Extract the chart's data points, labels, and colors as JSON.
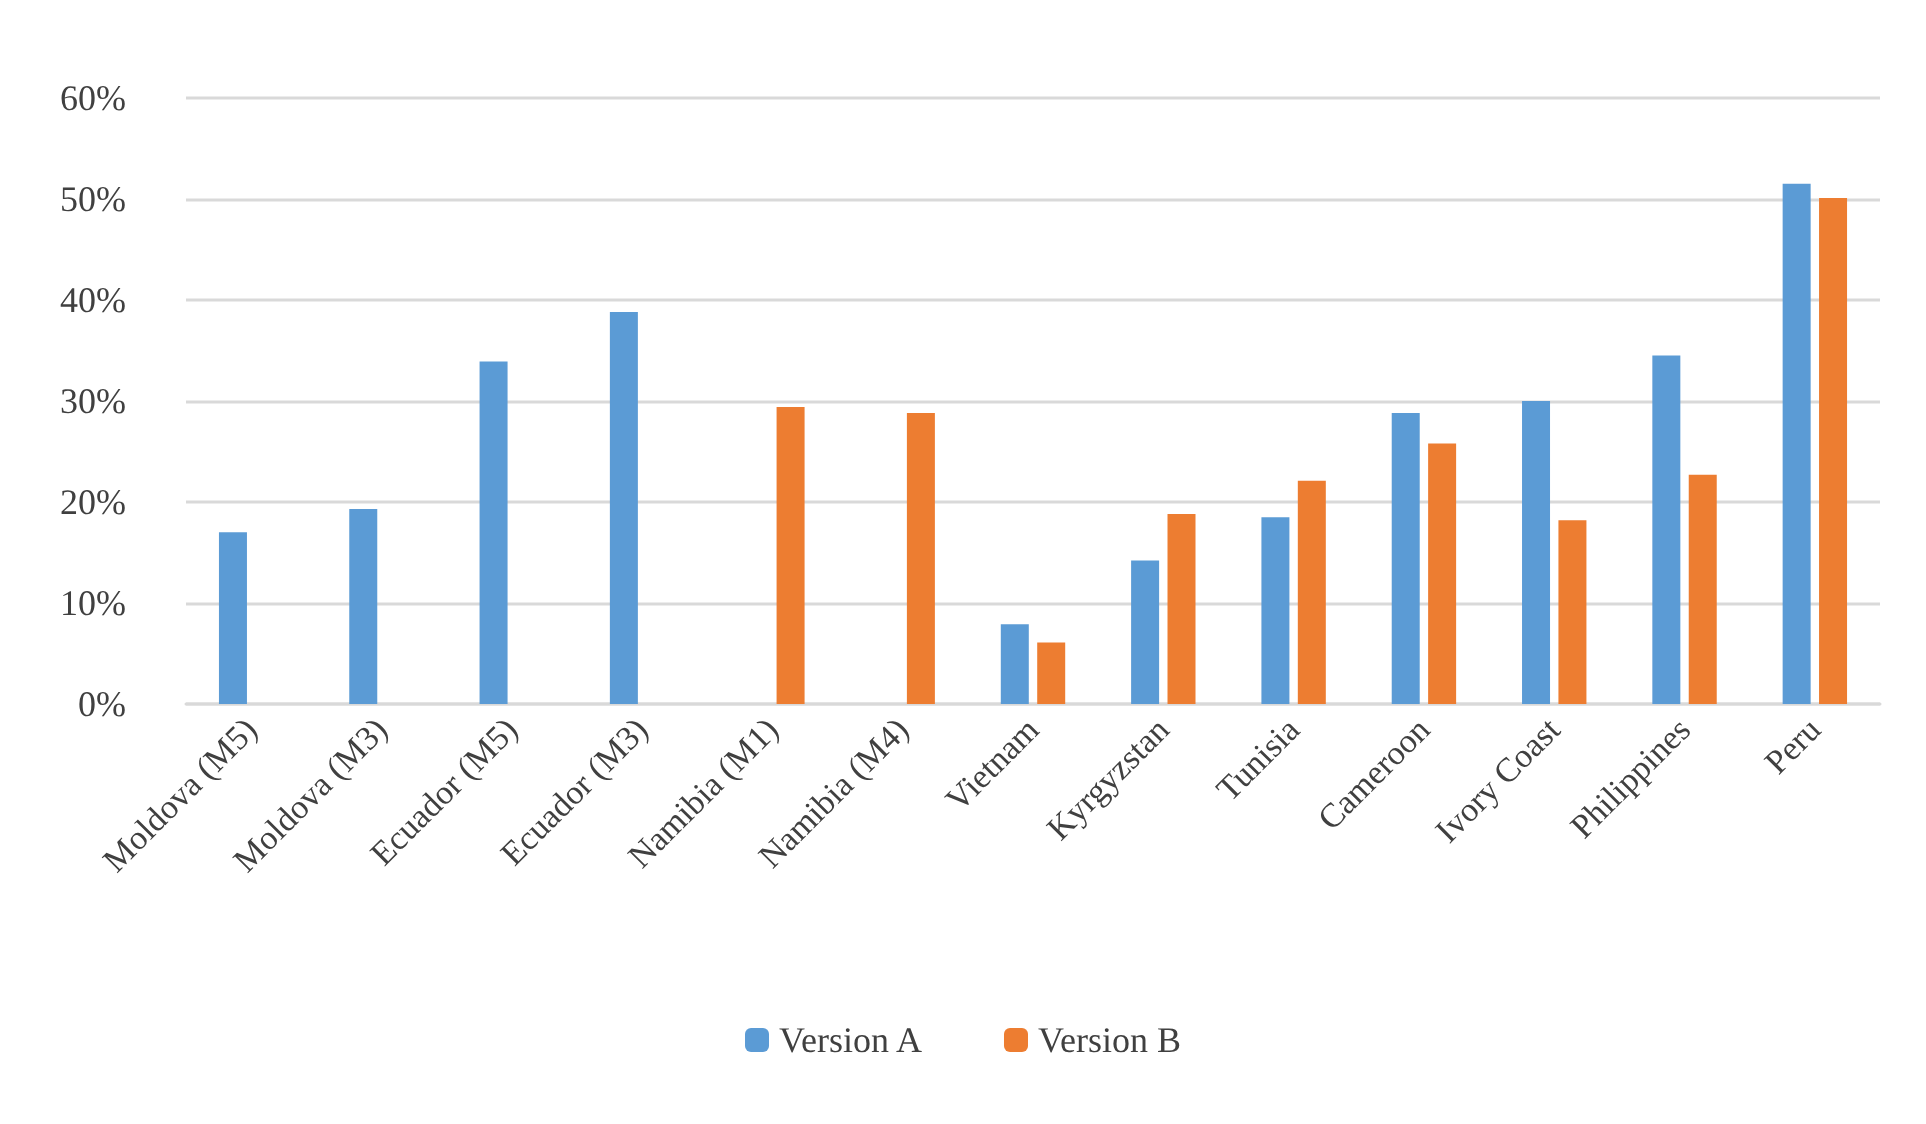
{
  "chart_data": {
    "type": "bar",
    "categories": [
      "Moldova (M5)",
      "Moldova (M3)",
      "Ecuador (M5)",
      "Ecuador (M3)",
      "Namibia (M1)",
      "Namibia (M4)",
      "Vietnam",
      "Kyrgyzstan",
      "Tunisia",
      "Cameroon",
      "Ivory Coast",
      "Philippines",
      "Peru"
    ],
    "series": [
      {
        "name": "Version A",
        "color": "#5b9bd5",
        "values": [
          17.0,
          19.3,
          33.9,
          38.8,
          null,
          null,
          7.9,
          14.2,
          18.5,
          28.8,
          30.0,
          34.5,
          51.5
        ]
      },
      {
        "name": "Version B",
        "color": "#ed7d31",
        "values": [
          null,
          null,
          null,
          null,
          29.4,
          28.8,
          6.1,
          18.8,
          22.1,
          25.8,
          18.2,
          22.7,
          50.1
        ]
      }
    ],
    "ylim": [
      0,
      60
    ],
    "yticks": [
      {
        "value": 0,
        "label": "0%"
      },
      {
        "value": 10,
        "label": "10%"
      },
      {
        "value": 20,
        "label": "20%"
      },
      {
        "value": 30,
        "label": "30%"
      },
      {
        "value": 40,
        "label": "40%"
      },
      {
        "value": 50,
        "label": "50%"
      },
      {
        "value": 60,
        "label": "60%"
      }
    ],
    "grid": "y",
    "legend": "bottom"
  }
}
